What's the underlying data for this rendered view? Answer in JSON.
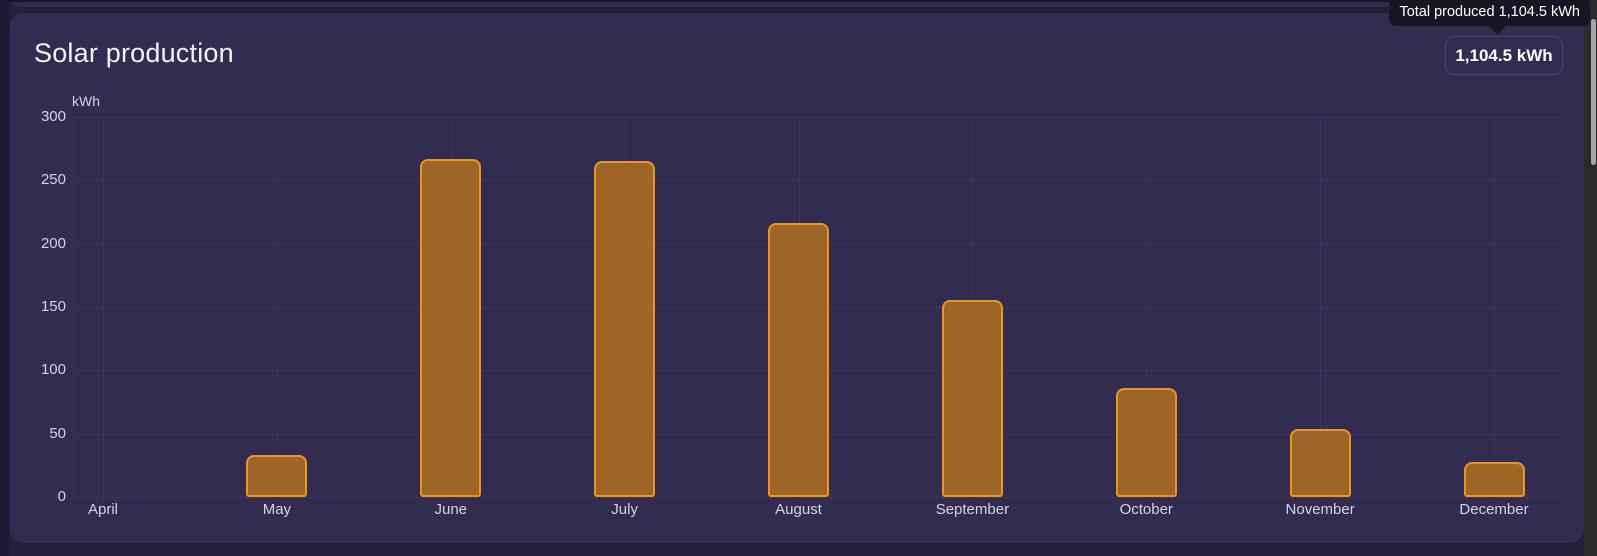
{
  "card": {
    "title": "Solar production",
    "total_badge": {
      "value": "1,104.5 kWh"
    }
  },
  "tooltip": {
    "text": "Total produced 1,104.5 kWh"
  },
  "scrollbar": {
    "name": "vertical-scrollbar"
  },
  "colors": {
    "page_bg": "#251f39",
    "card_bg": "#332c51",
    "bar_fill": "#9d6526",
    "bar_border": "#ee951c",
    "gridline": "#3c3560",
    "axis_text": "#d6d3e1",
    "title_text": "#f3f1f6",
    "tooltip_bg": "#191424",
    "badge_border": "#4b4374",
    "scrollbar_thumb": "#a7a7a7"
  },
  "chart_data": {
    "type": "bar",
    "title": "Solar production",
    "categories": [
      "April",
      "May",
      "June",
      "July",
      "August",
      "September",
      "October",
      "November",
      "December"
    ],
    "values": [
      0,
      33,
      267,
      265,
      216.5,
      155.5,
      86,
      54,
      27.5
    ],
    "total_label": "Total produced 1,104.5 kWh",
    "total_value": 1104.5,
    "xlabel": "",
    "ylabel": "kWh",
    "ylim": [
      0,
      300
    ],
    "yticks": [
      0,
      50,
      100,
      150,
      200,
      250,
      300
    ],
    "grid": true,
    "legend": false,
    "bar_color": "#9d6526",
    "bar_border_color": "#ee951c"
  }
}
